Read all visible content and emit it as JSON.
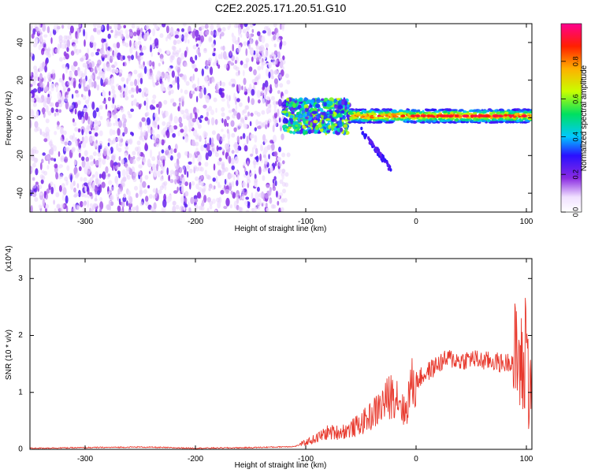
{
  "title": "C2E2.2025.171.20.51.G10",
  "colorbar": {
    "label": "Normalized spectral amplitude",
    "ticks": [
      "0.0",
      "0.2",
      "0.4",
      "0.6",
      "0.8"
    ],
    "tick_values": [
      0.0,
      0.2,
      0.4,
      0.6,
      0.8
    ],
    "range": [
      0,
      1
    ]
  },
  "chart_data": [
    {
      "type": "heatmap",
      "xlabel": "Height of straight line (km)",
      "ylabel": "Frequency (Hz)",
      "xlim": [
        -350,
        105
      ],
      "ylim": [
        -50,
        50
      ],
      "xticks": [
        -300,
        -200,
        -100,
        0,
        100
      ],
      "xtick_labels": [
        "-300",
        "-200",
        "-100",
        "0",
        "100"
      ],
      "yticks": [
        -40,
        -20,
        0,
        20,
        40
      ],
      "ytick_labels": [
        "-40",
        "-20",
        "0",
        "20",
        "40"
      ],
      "colormap": "rainbow (white → purple → blue → cyan → green → yellow → red)",
      "regions": [
        {
          "x_range": [
            -350,
            -120
          ],
          "freq_range": [
            -50,
            50
          ],
          "amplitude": "0.05-0.25 (noise)"
        },
        {
          "x_range": [
            -120,
            -60
          ],
          "freq_range": [
            -8,
            10
          ],
          "amplitude": "0.3-0.6"
        },
        {
          "x_range": [
            -60,
            105
          ],
          "freq_range": [
            -3,
            5
          ],
          "amplitude": "0.5-0.95"
        }
      ]
    },
    {
      "type": "line",
      "xlabel": "Height of straight line (km)",
      "ylabel": "SNR (10 * v/v)",
      "y_multiplier": "(x10^4)",
      "xlim": [
        -350,
        105
      ],
      "ylim": [
        0,
        3.35
      ],
      "xticks": [
        -300,
        -200,
        -100,
        0,
        100
      ],
      "xtick_labels": [
        "-300",
        "-200",
        "-100",
        "0",
        "100"
      ],
      "yticks": [
        0,
        1,
        2,
        3
      ],
      "ytick_labels": [
        "0",
        "1",
        "2",
        "3"
      ],
      "series": [
        {
          "color": "#e8392d",
          "x": [
            -350,
            -300,
            -250,
            -200,
            -150,
            -110,
            -100,
            -90,
            -80,
            -70,
            -60,
            -50,
            -40,
            -30,
            -20,
            -15,
            -10,
            -5,
            0,
            10,
            20,
            30,
            40,
            50,
            60,
            70,
            80,
            90,
            95,
            98,
            100,
            102,
            105
          ],
          "y": [
            0.02,
            0.03,
            0.04,
            0.02,
            0.03,
            0.05,
            0.12,
            0.2,
            0.3,
            0.3,
            0.35,
            0.45,
            0.6,
            0.8,
            1.0,
            0.9,
            0.6,
            1.1,
            1.2,
            1.35,
            1.5,
            1.6,
            1.55,
            1.6,
            1.55,
            1.55,
            1.5,
            1.6,
            1.5,
            1.2,
            2.6,
            0.9,
            1.6
          ]
        }
      ]
    }
  ]
}
